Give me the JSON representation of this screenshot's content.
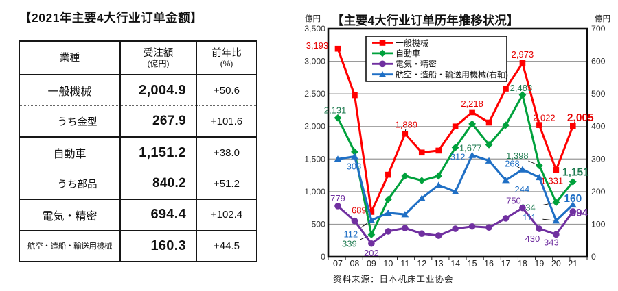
{
  "table": {
    "title": "【2021年主要4大行业订单金额】",
    "header": {
      "industry": "業種",
      "amount": "受注額",
      "amount_unit": "(億円)",
      "yoy": "前年比",
      "yoy_unit": "(%)"
    },
    "rows": [
      {
        "label": "一般機械",
        "value": "2,004.9",
        "yoy": "+50.6",
        "sub": false,
        "small": false
      },
      {
        "label": "うち金型",
        "value": "267.9",
        "yoy": "+101.6",
        "sub": true,
        "small": false
      },
      {
        "label": "自動車",
        "value": "1,151.2",
        "yoy": "+38.0",
        "sub": false,
        "small": false
      },
      {
        "label": "うち部品",
        "value": "840.2",
        "yoy": "+51.2",
        "sub": true,
        "small": false
      },
      {
        "label": "電気・精密",
        "value": "694.4",
        "yoy": "+102.4",
        "sub": false,
        "small": false
      },
      {
        "label": "航空・造船・輸送用機械",
        "value": "160.3",
        "yoy": "+44.5",
        "sub": false,
        "small": true
      }
    ]
  },
  "chart_data": {
    "type": "line",
    "title": "【主要4大行业订单历年推移状况】",
    "source": "资料来源：日本机床工业协会",
    "grid": true,
    "legend_position": "top-inside",
    "x": [
      "07",
      "08",
      "09",
      "10",
      "11",
      "12",
      "13",
      "14",
      "15",
      "16",
      "17",
      "18",
      "19",
      "20",
      "21"
    ],
    "left_axis": {
      "unit": "億円",
      "min": 0,
      "max": 3500,
      "ticks": [
        "0",
        "500",
        "1,000",
        "1,500",
        "2,000",
        "2,500",
        "3,000",
        "3,500"
      ]
    },
    "right_axis": {
      "unit": "億円",
      "min": 0,
      "max": 700,
      "ticks": [
        "0",
        "100",
        "200",
        "300",
        "400",
        "500",
        "600",
        "700"
      ]
    },
    "series": [
      {
        "key": "general-machinery",
        "name": "一般機械",
        "axis": "left",
        "color": "#ff0000",
        "label_color": "#e60000",
        "marker": "square",
        "values": [
          3193,
          2480,
          689,
          1260,
          1889,
          1600,
          1630,
          2000,
          2218,
          2060,
          2580,
          2973,
          2022,
          1331,
          2005
        ],
        "labels": [
          {
            "i": 0,
            "text": "3,193",
            "dx": -30,
            "dy": -4
          },
          {
            "i": 2,
            "text": "689",
            "dx": -18,
            "dy": -2,
            "leader": true
          },
          {
            "i": 4,
            "text": "1,889",
            "dx": 2,
            "dy": -13,
            "leader": true
          },
          {
            "i": 8,
            "text": "2,218",
            "dx": 0,
            "dy": -12
          },
          {
            "i": 11,
            "text": "2,973",
            "dx": 0,
            "dy": -12
          },
          {
            "i": 12,
            "text": "2,022",
            "dx": 7,
            "dy": -10
          },
          {
            "i": 13,
            "text": "1,331",
            "dx": -6,
            "dy": 16
          },
          {
            "i": 14,
            "text": "2,005",
            "dx": 11,
            "dy": -11,
            "bold": true
          }
        ]
      },
      {
        "key": "automobile",
        "name": "自動車",
        "axis": "left",
        "color": "#00a13c",
        "label_color": "#1e7a4f",
        "marker": "diamond",
        "values": [
          2131,
          1610,
          339,
          880,
          1240,
          1170,
          1240,
          1677,
          2040,
          1720,
          2020,
          2483,
          1398,
          834,
          1151
        ],
        "labels": [
          {
            "i": 0,
            "text": "2,131",
            "dx": -4,
            "dy": -11
          },
          {
            "i": 2,
            "text": "339",
            "dx": -32,
            "dy": 14,
            "leader": true
          },
          {
            "i": 7,
            "text": "1,677",
            "dx": 22,
            "dy": 1
          },
          {
            "i": 11,
            "text": "2,483",
            "dx": -2,
            "dy": -10
          },
          {
            "i": 12,
            "text": "1,398",
            "dx": -32,
            "dy": -14,
            "leader": true
          },
          {
            "i": 13,
            "text": "834",
            "dx": -41,
            "dy": 8,
            "leader": true
          },
          {
            "i": 14,
            "text": "1,151",
            "dx": 4,
            "dy": -13,
            "bold": true
          }
        ]
      },
      {
        "key": "electric-precision",
        "name": "電気・精密",
        "axis": "left",
        "color": "#7030a0",
        "label_color": "#7030a0",
        "marker": "circle",
        "values": [
          779,
          550,
          202,
          390,
          440,
          355,
          325,
          430,
          465,
          450,
          590,
          750,
          430,
          343,
          694
        ],
        "labels": [
          {
            "i": 0,
            "text": "779",
            "dx": 0,
            "dy": -11
          },
          {
            "i": 2,
            "text": "202",
            "dx": 0,
            "dy": 14
          },
          {
            "i": 11,
            "text": "750",
            "dx": -13,
            "dy": -10
          },
          {
            "i": 12,
            "text": "430",
            "dx": -10,
            "dy": 15
          },
          {
            "i": 13,
            "text": "343",
            "dx": -7,
            "dy": 12
          },
          {
            "i": 14,
            "text": "694",
            "dx": 9,
            "dy": 3,
            "bold": true
          }
        ]
      },
      {
        "key": "aero-ship-transport",
        "name": "航空・造船・輸送用機械(右軸)",
        "axis": "right",
        "color": "#1f6fc5",
        "label_color": "#1f6fc5",
        "marker": "triangle",
        "values": [
          300,
          308,
          112,
          135,
          130,
          180,
          220,
          200,
          312,
          295,
          235,
          268,
          244,
          111,
          160
        ],
        "labels": [
          {
            "i": 1,
            "text": "308",
            "dx": -1,
            "dy": 15
          },
          {
            "i": 2,
            "text": "112",
            "dx": -30,
            "dy": 21,
            "leader": true
          },
          {
            "i": 8,
            "text": "312",
            "dx": -21,
            "dy": 3
          },
          {
            "i": 11,
            "text": "268",
            "dx": -15,
            "dy": -8,
            "leader": true
          },
          {
            "i": 12,
            "text": "244",
            "dx": -25,
            "dy": 18
          },
          {
            "i": 13,
            "text": "111",
            "dx": -39,
            "dy": -4,
            "leader": true
          },
          {
            "i": 14,
            "text": "160",
            "dx": 0,
            "dy": -8,
            "bold": true
          }
        ]
      }
    ]
  }
}
